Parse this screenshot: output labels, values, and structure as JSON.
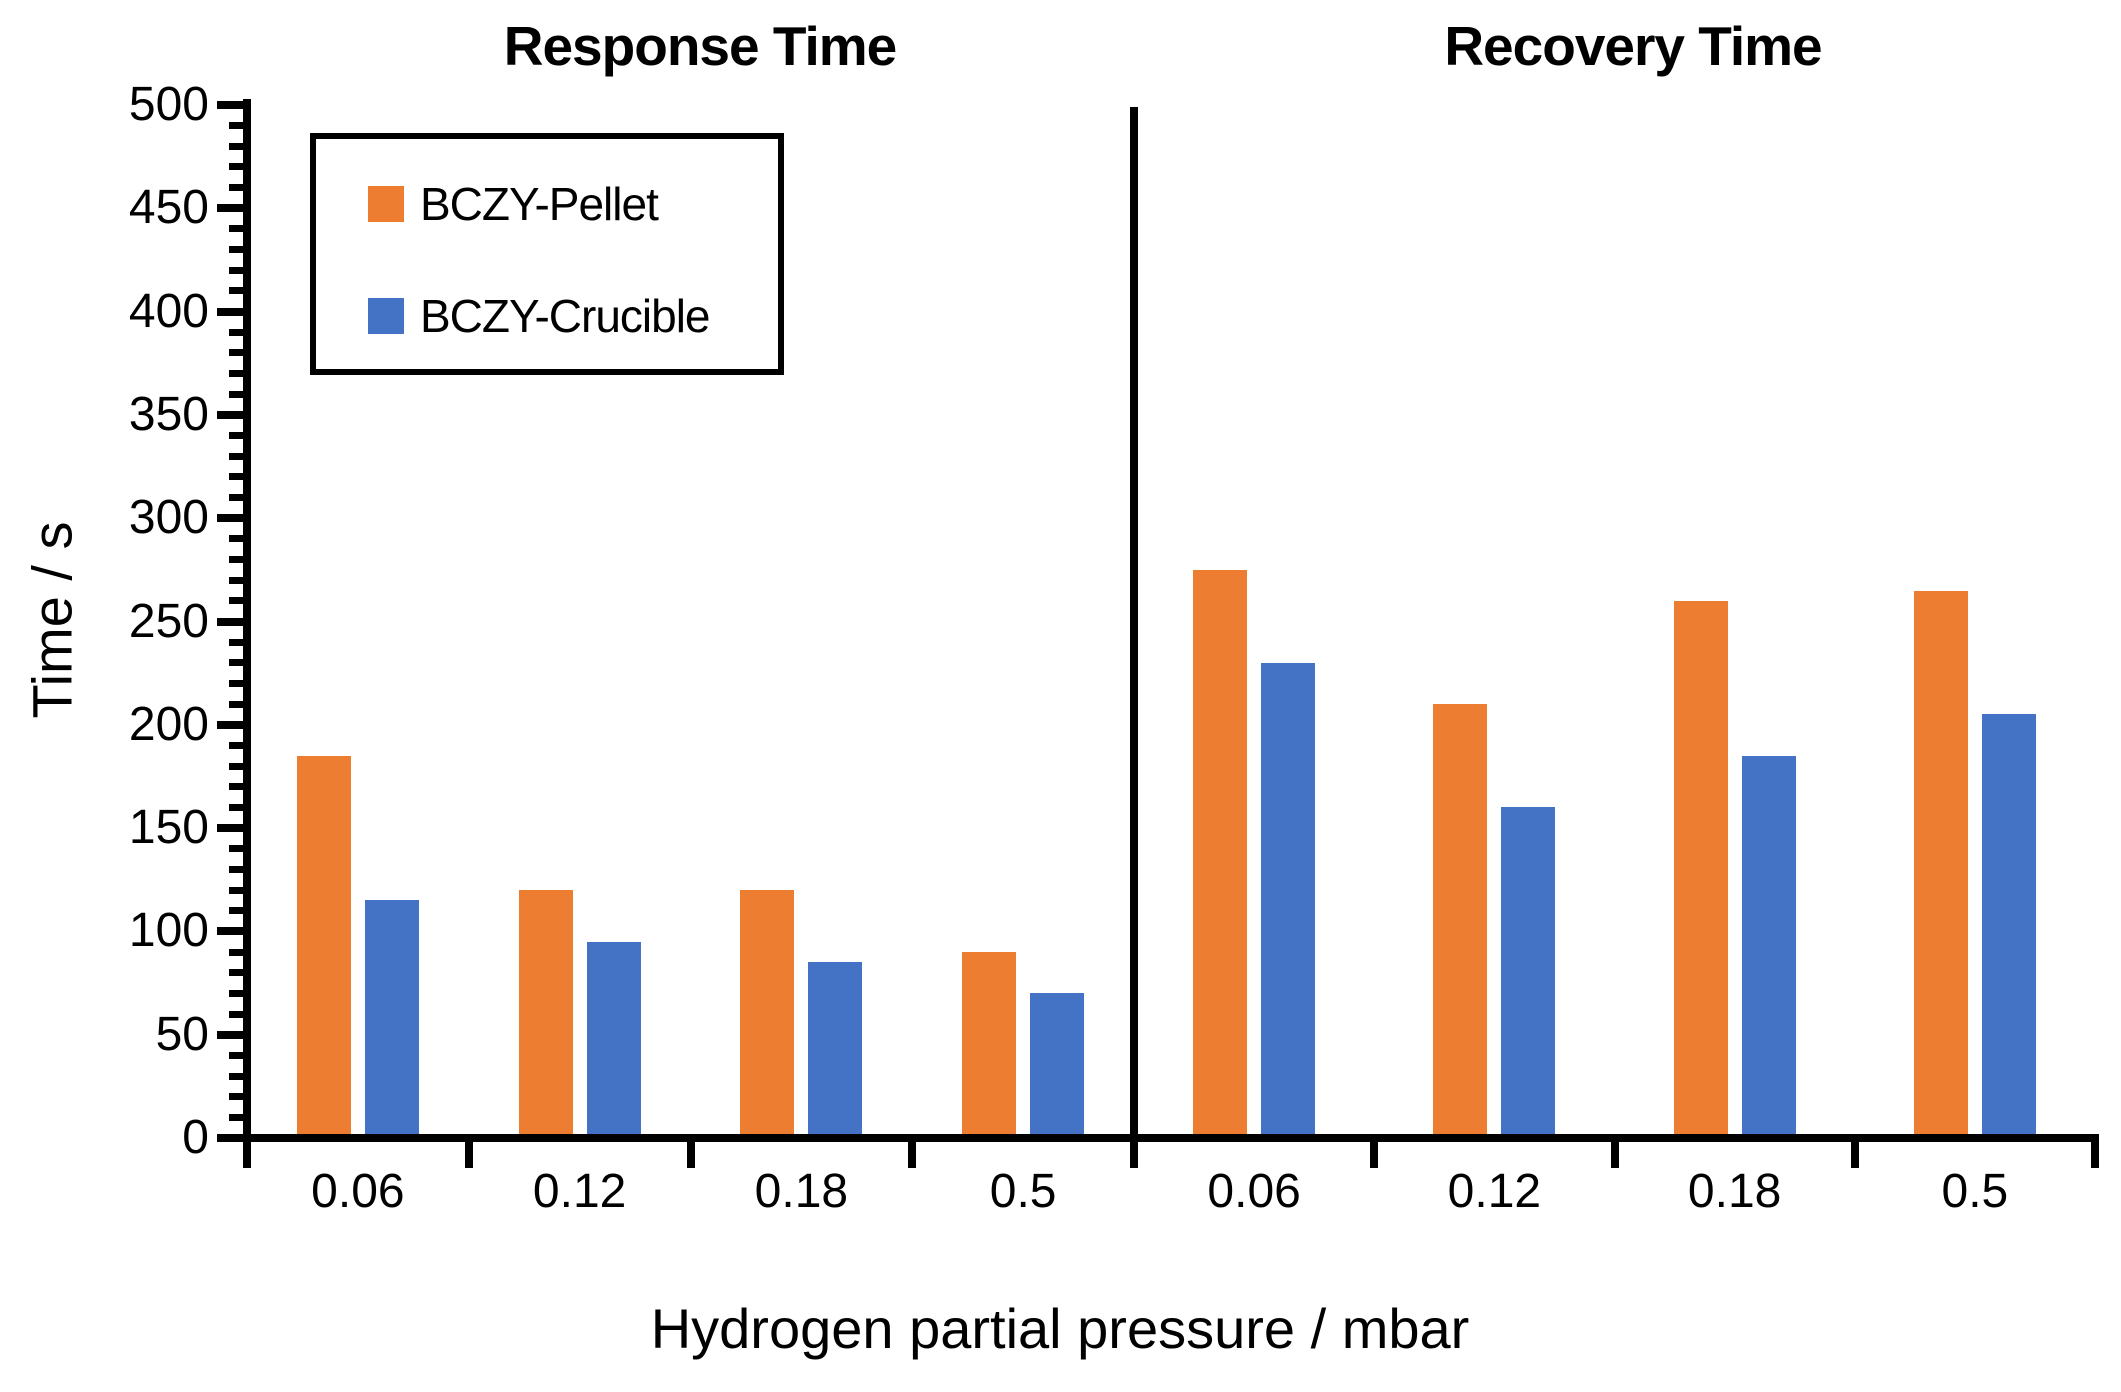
{
  "figure": {
    "ylabel": "Time / s",
    "xlabel": "Hydrogen partial pressure / mbar",
    "background_color": "#FFFFFF",
    "axis_color": "#000000"
  },
  "y_axis": {
    "min": 0,
    "max": 500,
    "major_step": 50,
    "minor_step": 10,
    "tick_labels": [
      "0",
      "50",
      "100",
      "150",
      "200",
      "250",
      "300",
      "350",
      "400",
      "450",
      "500"
    ]
  },
  "legend": {
    "items": [
      {
        "label": "BCZY-Pellet",
        "color": "#ED7D31"
      },
      {
        "label": "BCZY-Crucible",
        "color": "#4472C4"
      }
    ]
  },
  "chart_data": [
    {
      "type": "bar",
      "title": "Response Time",
      "categories": [
        "0.06",
        "0.12",
        "0.18",
        "0.5"
      ],
      "series": [
        {
          "name": "BCZY-Pellet",
          "color": "#ED7D31",
          "values": [
            185,
            120,
            120,
            90
          ]
        },
        {
          "name": "BCZY-Crucible",
          "color": "#4472C4",
          "values": [
            115,
            95,
            85,
            70
          ]
        }
      ],
      "xlabel": "Hydrogen partial pressure / mbar",
      "ylabel": "Time / s",
      "ylim": [
        0,
        500
      ],
      "grid": false,
      "legend_position": "upper-left"
    },
    {
      "type": "bar",
      "title": "Recovery Time",
      "categories": [
        "0.06",
        "0.12",
        "0.18",
        "0.5"
      ],
      "series": [
        {
          "name": "BCZY-Pellet",
          "color": "#ED7D31",
          "values": [
            275,
            210,
            260,
            265
          ]
        },
        {
          "name": "BCZY-Crucible",
          "color": "#4472C4",
          "values": [
            230,
            160,
            185,
            205
          ]
        }
      ],
      "xlabel": "Hydrogen partial pressure / mbar",
      "ylabel": "Time / s",
      "ylim": [
        0,
        500
      ],
      "grid": false,
      "legend_position": "none"
    }
  ]
}
